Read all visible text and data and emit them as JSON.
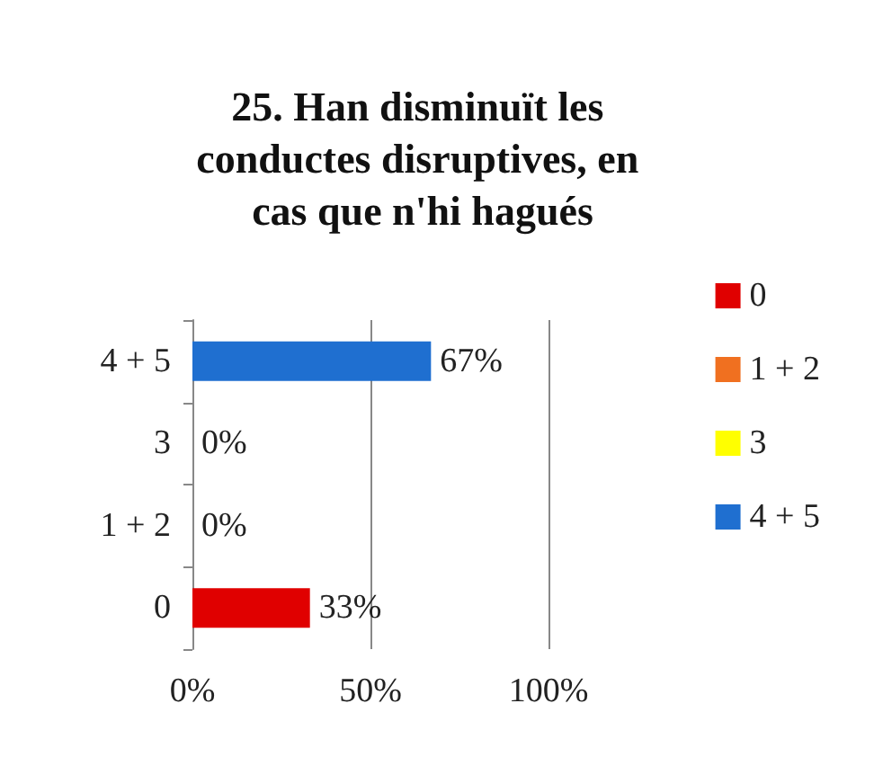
{
  "chart_data": {
    "type": "bar",
    "orientation": "horizontal",
    "stacked": true,
    "title": "25. Han disminuït les conductes disruptives, en cas que n'hi hagués",
    "categories": [
      "4 + 5",
      "3",
      "1 + 2",
      "0"
    ],
    "series": [
      {
        "name": "0",
        "color": "#e00000",
        "values": [
          null,
          null,
          null,
          33
        ],
        "value_labels": [
          null,
          null,
          null,
          "33%"
        ]
      },
      {
        "name": "1 + 2",
        "color": "#f07020",
        "values": [
          null,
          null,
          0,
          null
        ],
        "value_labels": [
          null,
          null,
          "0%",
          null
        ]
      },
      {
        "name": "3",
        "color": "#ffff00",
        "values": [
          null,
          0,
          null,
          null
        ],
        "value_labels": [
          null,
          "0%",
          null,
          null
        ]
      },
      {
        "name": "4 + 5",
        "color": "#1f6fd0",
        "values": [
          67,
          null,
          null,
          null
        ],
        "value_labels": [
          "67%",
          null,
          null,
          null
        ]
      }
    ],
    "xlim": [
      0,
      100
    ],
    "xticks": [
      {
        "value": 0,
        "label": "0%"
      },
      {
        "value": 50,
        "label": "50%"
      },
      {
        "value": 100,
        "label": "100%"
      }
    ],
    "grid": "x",
    "legend": "right"
  }
}
